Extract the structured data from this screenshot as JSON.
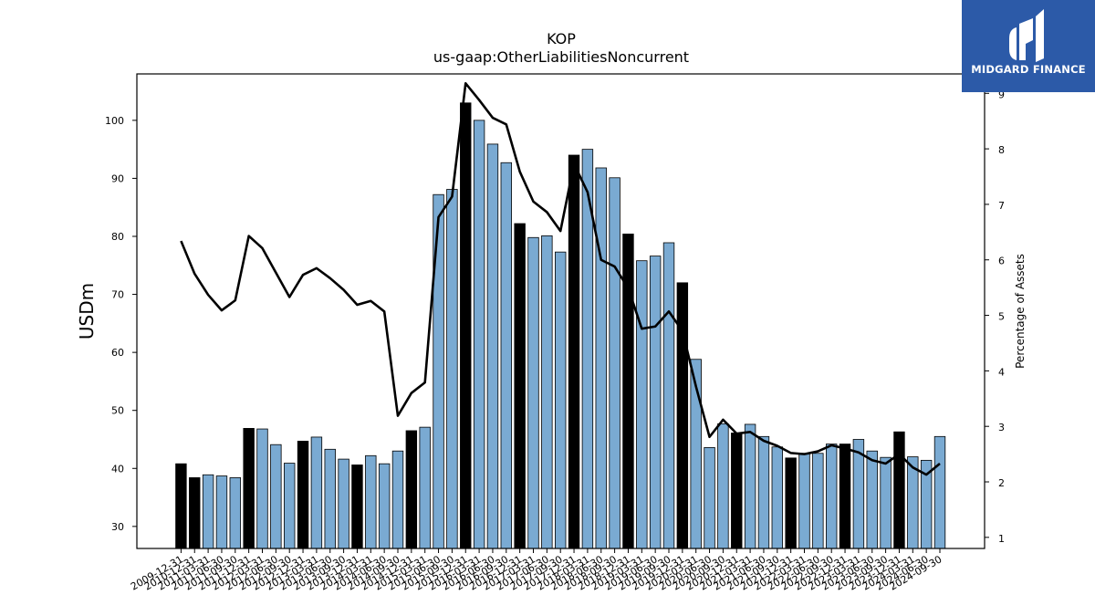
{
  "logo": {
    "text": "MIDGARD FINANCE",
    "icon": "midgard-logo-icon"
  },
  "chart_data": {
    "type": "bar",
    "title": "KOP",
    "subtitle": "us-gaap:OtherLiabilitiesNoncurrent",
    "ylabel": "USDm",
    "y2label": "Percentage of Assets",
    "ylim": [
      26.2,
      108
    ],
    "y2lim": [
      0.8,
      9.35
    ],
    "yticks": [
      30,
      40,
      50,
      60,
      70,
      80,
      90,
      100
    ],
    "y2ticks": [
      1,
      2,
      3,
      4,
      5,
      6,
      7,
      8,
      9
    ],
    "colors": {
      "annual_bar": "#000000",
      "quarter_bar": "#7aaad2",
      "line": "#000000"
    },
    "categories": [
      "2009-12-31",
      "2010-12-31",
      "2011-03-31",
      "2011-06-30",
      "2011-09-30",
      "2011-12-31",
      "2012-03-31",
      "2012-06-30",
      "2012-09-30",
      "2012-12-31",
      "2013-03-31",
      "2013-06-30",
      "2013-09-30",
      "2013-12-31",
      "2014-03-31",
      "2014-06-30",
      "2014-09-30",
      "2014-12-31",
      "2015-03-31",
      "2015-06-30",
      "2015-09-30",
      "2015-12-31",
      "2016-03-31",
      "2016-06-30",
      "2016-09-30",
      "2016-12-31",
      "2017-03-31",
      "2017-06-30",
      "2017-09-30",
      "2017-12-31",
      "2018-03-31",
      "2018-06-30",
      "2018-09-30",
      "2018-12-31",
      "2019-03-31",
      "2019-06-30",
      "2019-09-30",
      "2019-12-31",
      "2020-03-31",
      "2020-06-30",
      "2020-09-30",
      "2020-12-31",
      "2021-03-31",
      "2021-06-30",
      "2021-09-30",
      "2021-12-31",
      "2022-03-31",
      "2022-06-30",
      "2022-09-30",
      "2022-12-31",
      "2023-03-31",
      "2023-06-30",
      "2023-09-30",
      "2023-12-31",
      "2024-03-31",
      "2024-06-30",
      "2024-09-30"
    ],
    "tick_labels": [
      "2009-12-31",
      "2010-12-31",
      "2011-03-31",
      "2011-06-30",
      "2011-09-30",
      "2011-12-31",
      "2012-03-31",
      "2012-06-30",
      "2012-09-30",
      "2012-12-31",
      "2013-03-31",
      "2013-06-30",
      "2013-09-30",
      "2013-12-31",
      "2014-03-31",
      "2014-06-30",
      "2014-09-30",
      "2014-12-31",
      "2015-03-31",
      "2015-06-30",
      "2015-09-30",
      "2015-12-31",
      "2016-03-31",
      "2016-06-30",
      "2016-09-30",
      "2016-12-31",
      "2017-03-31",
      "2017-06-30",
      "2017-09-30",
      "2017-12-31",
      "2018-03-31",
      "2018-06-30",
      "2018-09-30",
      "2018-12-31",
      "2019-03-31",
      "2019-06-30",
      "2019-09-30",
      "2019-12-31",
      "2020-03-31",
      "2020-06-30",
      "2020-09-30",
      "2020-12-31",
      "2021-03-31",
      "2021-06-30",
      "2021-09-30",
      "2021-12-31",
      "2022-03-31",
      "2022-06-30",
      "2022-09-30",
      "2022-12-31",
      "2023-03-31",
      "2023-06-30",
      "2023-09-30",
      "2023-12-31",
      "2024-03-31",
      "2024-06-30",
      "2024-09-30"
    ],
    "bars": [
      40.8,
      38.4,
      38.9,
      38.7,
      38.4,
      46.9,
      46.8,
      44.1,
      40.9,
      44.7,
      45.4,
      43.3,
      41.6,
      40.6,
      42.2,
      40.8,
      43.0,
      46.5,
      47.1,
      87.2,
      88.1,
      103.0,
      100.0,
      95.9,
      92.7,
      82.2,
      79.8,
      80.1,
      77.3,
      94.0,
      95.0,
      91.8,
      90.1,
      80.4,
      75.8,
      76.6,
      78.9,
      72.0,
      58.8,
      43.6,
      47.7,
      46.1,
      47.6,
      45.5,
      43.7,
      41.8,
      42.6,
      42.6,
      44.2,
      44.2,
      45.0,
      43.0,
      41.9,
      46.3,
      42.0,
      41.4,
      45.5
    ],
    "annual": [
      true,
      true,
      false,
      false,
      false,
      true,
      false,
      false,
      false,
      true,
      false,
      false,
      false,
      true,
      false,
      false,
      false,
      true,
      false,
      false,
      false,
      true,
      false,
      false,
      false,
      true,
      false,
      false,
      false,
      true,
      false,
      false,
      false,
      true,
      false,
      false,
      false,
      true,
      false,
      false,
      false,
      true,
      false,
      false,
      false,
      true,
      false,
      false,
      false,
      true,
      false,
      false,
      false,
      true,
      false,
      false,
      false
    ],
    "line_pct": [
      6.34,
      5.75,
      5.37,
      5.09,
      5.27,
      6.43,
      6.21,
      5.77,
      5.33,
      5.73,
      5.85,
      5.67,
      5.46,
      5.19,
      5.26,
      5.07,
      3.19,
      3.6,
      3.79,
      6.77,
      7.14,
      9.18,
      8.88,
      8.56,
      8.44,
      7.59,
      7.05,
      6.86,
      6.52,
      7.73,
      7.22,
      6.0,
      5.88,
      5.49,
      4.76,
      4.8,
      5.07,
      4.72,
      3.72,
      2.81,
      3.12,
      2.87,
      2.9,
      2.74,
      2.65,
      2.52,
      2.5,
      2.55,
      2.66,
      2.6,
      2.53,
      2.39,
      2.33,
      2.5,
      2.26,
      2.13,
      2.33
    ]
  }
}
